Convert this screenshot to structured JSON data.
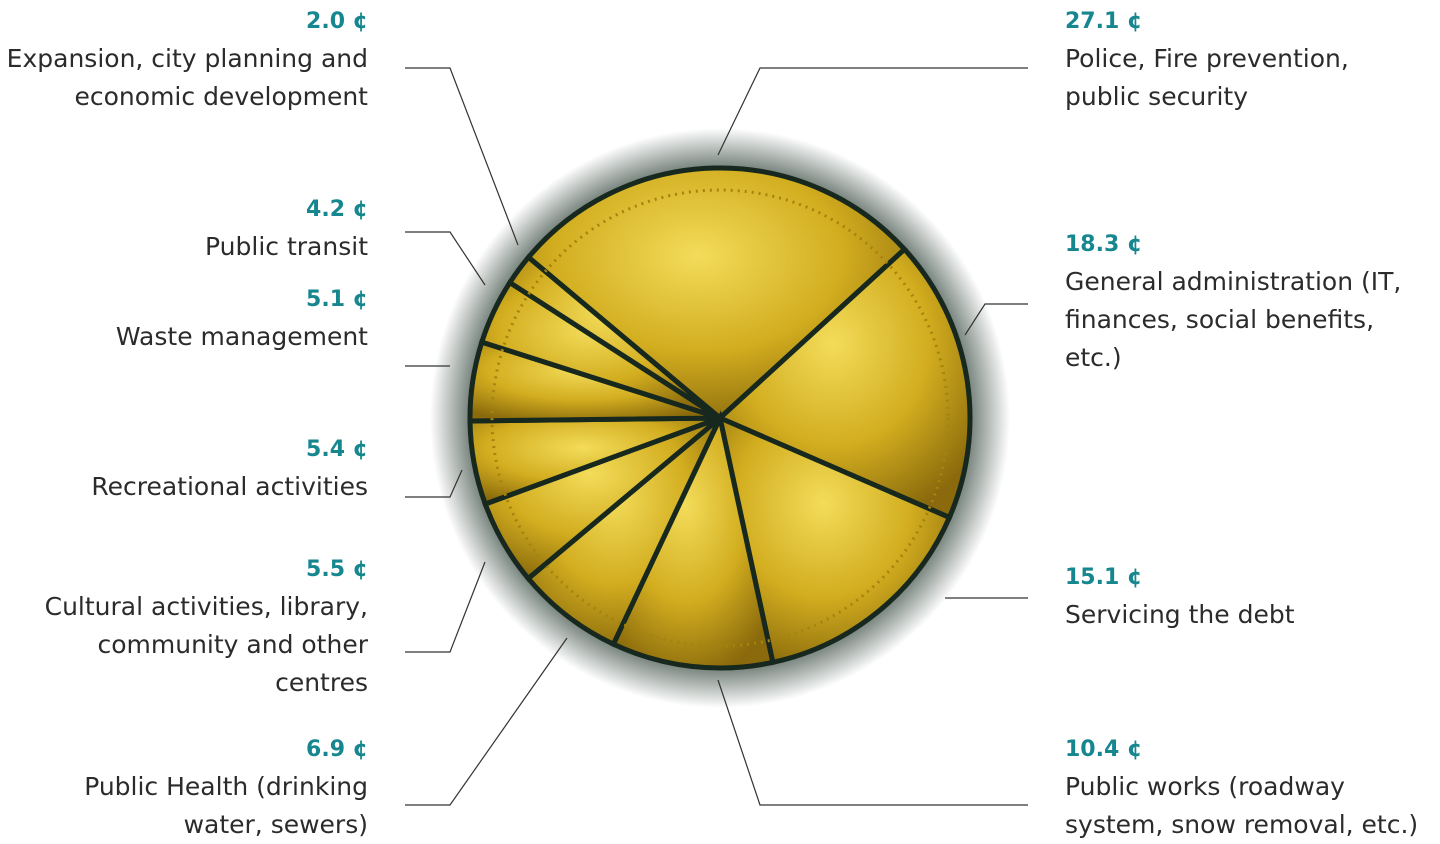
{
  "chart_data": {
    "type": "pie",
    "categories": [
      "Police, Fire prevention, public security",
      "General administration (IT, finances, social benefits, etc.)",
      "Servicing the debt",
      "Public works (roadway system, snow removal, etc.)",
      "Public Health (drinking water, sewers)",
      "Cultural activities, library, community and other centres",
      "Recreational activities",
      "Waste management",
      "Public transit",
      "Expansion, city planning and economic development"
    ],
    "values": [
      27.1,
      18.3,
      15.1,
      10.4,
      6.9,
      5.5,
      5.4,
      5.1,
      4.2,
      2.0
    ],
    "value_labels": [
      "27.1 ¢",
      "18.3 ¢",
      "15.1 ¢",
      "10.4 ¢",
      "6.9 ¢",
      "5.5 ¢",
      "5.4 ¢",
      "5.1 ¢",
      "4.2 ¢",
      "2.0 ¢"
    ],
    "color": "#d8b423"
  }
}
